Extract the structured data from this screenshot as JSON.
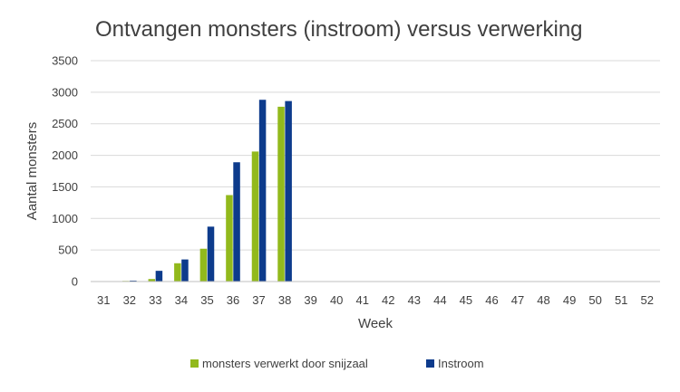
{
  "chart_data": {
    "type": "bar",
    "title": "Ontvangen monsters (instroom) versus verwerking",
    "xlabel": "Week",
    "ylabel": "Aantal monsters",
    "ylim": [
      0,
      3500
    ],
    "yticks": [
      0,
      500,
      1000,
      1500,
      2000,
      2500,
      3000,
      3500
    ],
    "grid": true,
    "legend_position": "bottom",
    "categories": [
      "31",
      "32",
      "33",
      "34",
      "35",
      "36",
      "37",
      "38",
      "39",
      "40",
      "41",
      "42",
      "43",
      "44",
      "45",
      "46",
      "47",
      "48",
      "49",
      "50",
      "51",
      "52"
    ],
    "series": [
      {
        "name": "monsters verwerkt door snijzaal",
        "color": "#92b91c",
        "values": [
          0,
          10,
          40,
          290,
          520,
          1370,
          2060,
          2770,
          null,
          null,
          null,
          null,
          null,
          null,
          null,
          null,
          null,
          null,
          null,
          null,
          null,
          null
        ]
      },
      {
        "name": "Instroom",
        "color": "#0d3b8c",
        "values": [
          0,
          15,
          170,
          350,
          870,
          1890,
          2880,
          2860,
          null,
          null,
          null,
          null,
          null,
          null,
          null,
          null,
          null,
          null,
          null,
          null,
          null,
          null
        ]
      }
    ]
  }
}
